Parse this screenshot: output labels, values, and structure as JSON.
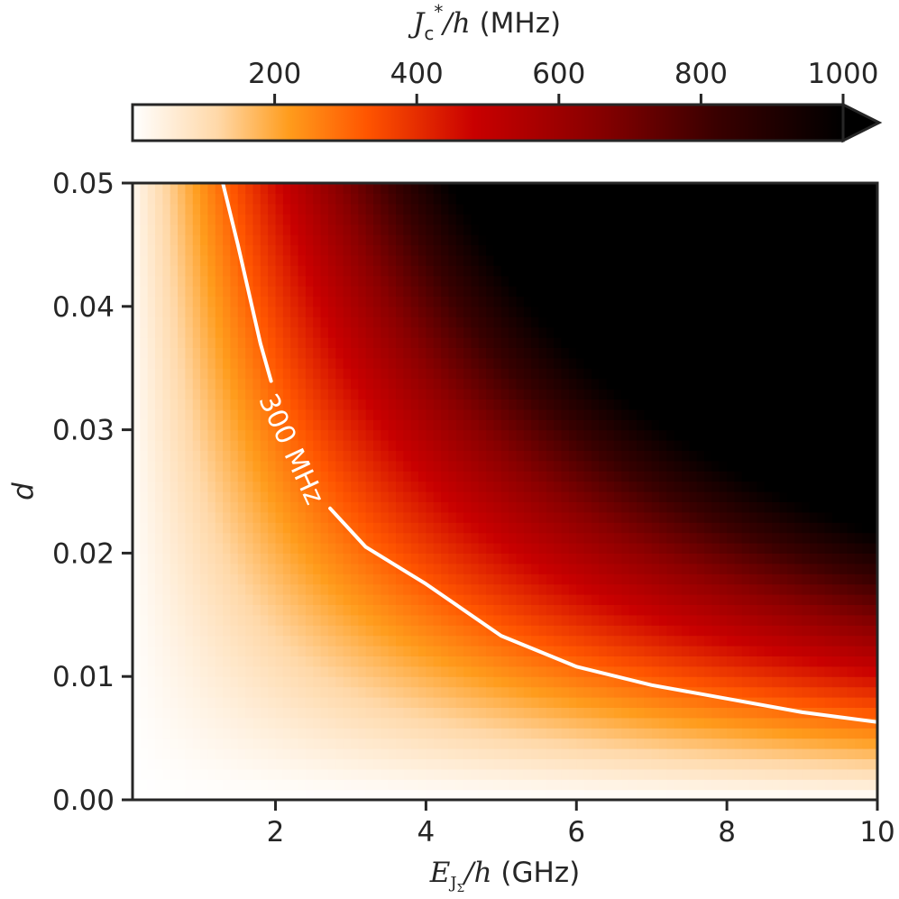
{
  "chart_data": {
    "type": "heatmap",
    "title": "",
    "x": {
      "label_parts": [
        "E",
        "J",
        "Σ",
        "/h",
        " (GHz)"
      ],
      "range": [
        0.1,
        10
      ],
      "ticks": [
        2,
        4,
        6,
        8,
        10
      ],
      "tick_labels": [
        "2",
        "4",
        "6",
        "8",
        "10"
      ]
    },
    "y": {
      "label": "d",
      "range": [
        0.0,
        0.05
      ],
      "ticks": [
        0.0,
        0.01,
        0.02,
        0.03,
        0.04,
        0.05
      ],
      "tick_labels": [
        "0.00",
        "0.01",
        "0.02",
        "0.03",
        "0.04",
        "0.05"
      ]
    },
    "colorbar": {
      "label_parts": [
        "J",
        "c",
        "*",
        "/h",
        " (MHz)"
      ],
      "range": [
        0,
        1000
      ],
      "extend": "max",
      "location": "top",
      "colormap": "gist_heat_r",
      "ticks": [
        200,
        400,
        600,
        800,
        1000
      ],
      "tick_labels": [
        "200",
        "400",
        "600",
        "800",
        "1000"
      ]
    },
    "grid": {
      "nx": 99,
      "ny": 60,
      "model": "Jc* proportional to d * E_J_Sigma",
      "reference_points": [
        {
          "x": 2.2,
          "y": 0.0283,
          "value": 300
        },
        {
          "x": 4.0,
          "y": 0.0175,
          "value": 300
        },
        {
          "x": 6.0,
          "y": 0.0108,
          "value": 300
        },
        {
          "x": 8.0,
          "y": 0.0082,
          "value": 300
        },
        {
          "x": 10.0,
          "y": 0.0063,
          "value": 300
        }
      ]
    },
    "contours": [
      {
        "level": 300,
        "label": "300 MHz",
        "color": "#ffffff",
        "points": [
          [
            1.3,
            0.05
          ],
          [
            1.5,
            0.045
          ],
          [
            1.8,
            0.037
          ],
          [
            2.2,
            0.0283
          ],
          [
            2.7,
            0.0238
          ],
          [
            3.2,
            0.0205
          ],
          [
            4.0,
            0.0175
          ],
          [
            5.0,
            0.0133
          ],
          [
            6.0,
            0.0108
          ],
          [
            7.0,
            0.0093
          ],
          [
            8.0,
            0.0082
          ],
          [
            9.0,
            0.0071
          ],
          [
            10.0,
            0.0063
          ]
        ]
      }
    ]
  }
}
